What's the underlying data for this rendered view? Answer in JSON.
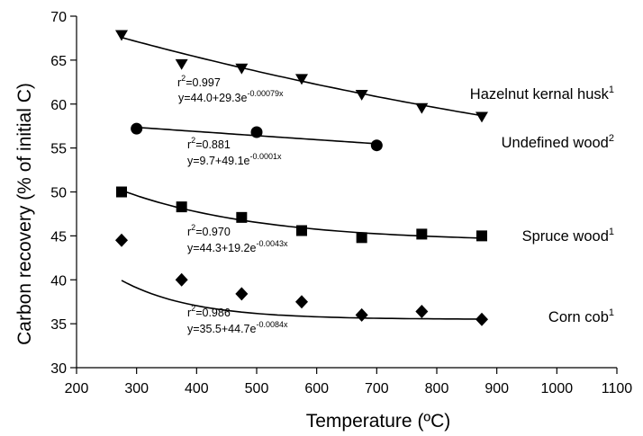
{
  "chart_data": {
    "type": "scatter",
    "xlabel": "Temperature (ºC)",
    "ylabel": "Carbon recovery (% of initial C)",
    "xlim": [
      200,
      1100
    ],
    "ylim": [
      30,
      70
    ],
    "xticks": [
      200,
      300,
      400,
      500,
      600,
      700,
      800,
      900,
      1000,
      1100
    ],
    "yticks": [
      30,
      35,
      40,
      45,
      50,
      55,
      60,
      65,
      70
    ],
    "grid": false,
    "series": [
      {
        "name": "Hazelnut kernal husk",
        "superscript": "1",
        "marker": "triangle-down",
        "x": [
          275,
          375,
          475,
          575,
          675,
          775,
          875
        ],
        "y": [
          67.8,
          64.5,
          64.0,
          62.8,
          61.0,
          59.5,
          58.5
        ],
        "fit": {
          "a": 44.0,
          "b": 29.3,
          "k": 0.00079
        },
        "r2": "r",
        "r2_sup": "2",
        "r2_value": "=0.997",
        "eq_main": "y=44.0+29.3e",
        "eq_exp": "-0.00079x"
      },
      {
        "name": "Undefined wood",
        "superscript": "2",
        "marker": "circle",
        "x": [
          300,
          500,
          700
        ],
        "y": [
          57.2,
          56.8,
          55.3
        ],
        "fit": {
          "a": 9.7,
          "b": 49.1,
          "k": 0.0001
        },
        "r2": "r",
        "r2_sup": "2",
        "r2_value": "=0.881",
        "eq_main": "y=9.7+49.1e",
        "eq_exp": "-0.0001x"
      },
      {
        "name": "Spruce wood",
        "superscript": "1",
        "marker": "square",
        "x": [
          275,
          375,
          475,
          575,
          675,
          775,
          875
        ],
        "y": [
          50.0,
          48.3,
          47.1,
          45.6,
          44.8,
          45.2,
          45.0
        ],
        "fit": {
          "a": 44.3,
          "b": 19.2,
          "k": 0.0043
        },
        "r2": "r",
        "r2_sup": "2",
        "r2_value": "=0.970",
        "eq_main": "y=44.3+19.2e",
        "eq_exp": "-0.0043x"
      },
      {
        "name": "Corn cob",
        "superscript": "1",
        "marker": "diamond",
        "x": [
          275,
          375,
          475,
          575,
          675,
          775,
          875
        ],
        "y": [
          44.5,
          40.0,
          38.4,
          37.5,
          36.0,
          36.4,
          35.5
        ],
        "fit": {
          "a": 35.5,
          "b": 44.7,
          "k": 0.0084
        },
        "r2": "r",
        "r2_sup": "2",
        "r2_value": "=0.986",
        "eq_main": "y=35.5+44.7e",
        "eq_exp": "-0.0084x"
      }
    ]
  }
}
